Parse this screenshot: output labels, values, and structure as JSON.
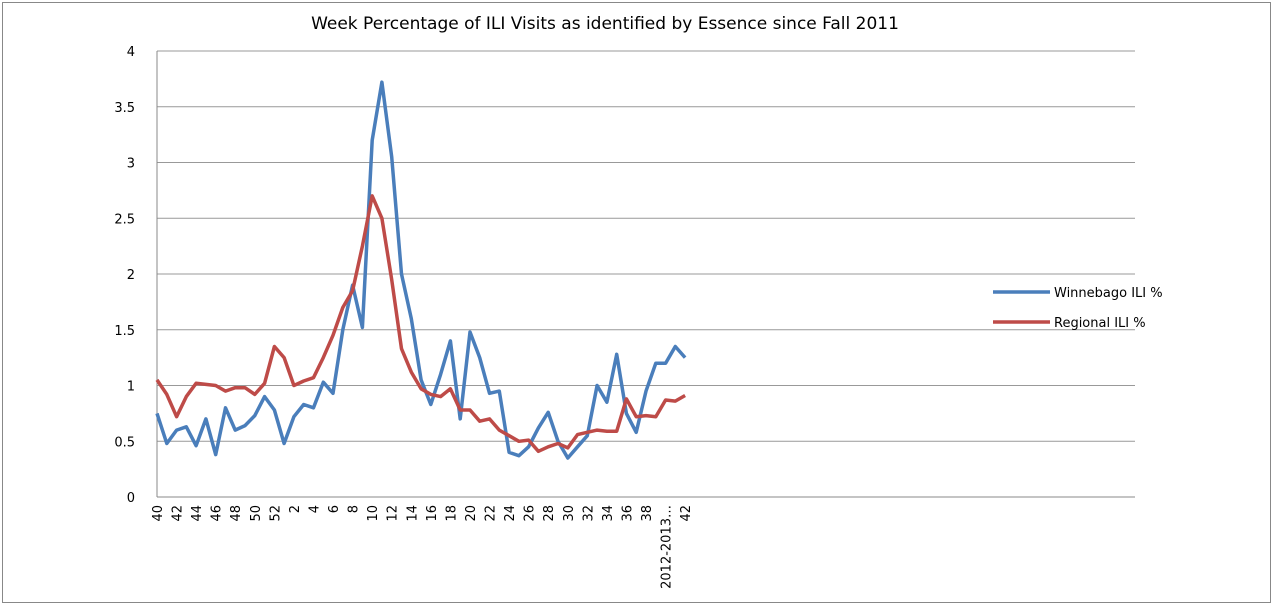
{
  "chart_data": {
    "type": "line",
    "title": "Week Percentage of ILI Visits as identified by Essence since Fall 2011",
    "categories": [
      "40",
      null,
      "42",
      null,
      "44",
      null,
      "46",
      null,
      "48",
      null,
      "50",
      null,
      "52",
      null,
      "2",
      null,
      "4",
      null,
      "6",
      null,
      "8",
      null,
      "10",
      null,
      "12",
      null,
      "14",
      null,
      "16",
      null,
      "18",
      null,
      "20",
      null,
      "22",
      null,
      "24",
      null,
      "26",
      null,
      "28",
      null,
      "30",
      null,
      "32",
      null,
      "34",
      null,
      "36",
      null,
      "38",
      null,
      "2012-2013…",
      null,
      "42",
      null,
      null,
      null,
      null,
      null,
      null,
      null,
      null,
      null,
      null,
      null,
      null,
      null,
      null,
      null,
      null,
      null,
      null,
      null,
      null,
      null,
      null,
      null,
      null,
      null,
      null,
      null,
      null,
      null,
      null,
      null,
      null,
      null,
      null,
      null,
      null,
      null,
      null,
      null,
      null,
      null,
      null,
      null,
      null,
      null
    ],
    "series": [
      {
        "name": "Winnebago ILI %",
        "color": "#4a7ebb",
        "values": [
          0.75,
          0.48,
          0.6,
          0.63,
          0.46,
          0.7,
          0.38,
          0.8,
          0.6,
          0.64,
          0.73,
          0.9,
          0.78,
          0.48,
          0.72,
          0.83,
          0.8,
          1.03,
          0.93,
          1.5,
          1.9,
          1.52,
          3.2,
          3.72,
          3.05,
          2.0,
          1.6,
          1.05,
          0.83,
          1.1,
          1.4,
          0.7,
          1.48,
          1.25,
          0.93,
          0.95,
          0.4,
          0.37,
          0.45,
          0.62,
          0.76,
          0.5,
          0.35,
          0.45,
          0.55,
          1.0,
          0.85,
          1.28,
          0.75,
          0.58,
          0.95,
          1.2,
          1.2,
          1.35,
          1.25,
          null,
          null,
          null,
          null,
          null,
          null,
          null,
          null,
          null,
          null,
          null,
          null,
          null,
          null,
          null,
          null,
          null,
          null,
          null,
          null,
          null,
          null,
          null,
          null,
          null,
          null,
          null,
          null,
          null,
          null,
          null,
          null,
          null,
          null,
          null,
          null,
          null,
          null,
          null,
          null,
          null,
          null,
          null,
          null,
          null
        ]
      },
      {
        "name": "Regional ILI %",
        "color": "#be4b48",
        "values": [
          1.05,
          0.92,
          0.72,
          0.9,
          1.02,
          1.01,
          1.0,
          0.95,
          0.98,
          0.98,
          0.92,
          1.02,
          1.35,
          1.25,
          1.0,
          1.04,
          1.07,
          1.25,
          1.45,
          1.7,
          1.85,
          2.25,
          2.7,
          2.5,
          1.95,
          1.33,
          1.12,
          0.97,
          0.92,
          0.9,
          0.97,
          0.78,
          0.78,
          0.68,
          0.7,
          0.6,
          0.55,
          0.5,
          0.51,
          0.41,
          0.45,
          0.48,
          0.44,
          0.56,
          0.58,
          0.6,
          0.59,
          0.59,
          0.88,
          0.72,
          0.73,
          0.72,
          0.87,
          0.86,
          0.91,
          null,
          null,
          null,
          null,
          null,
          null,
          null,
          null,
          null,
          null,
          null,
          null,
          null,
          null,
          null,
          null,
          null,
          null,
          null,
          null,
          null,
          null,
          null,
          null,
          null,
          null,
          null,
          null,
          null,
          null,
          null,
          null,
          null,
          null,
          null,
          null,
          null,
          null,
          null,
          null,
          null,
          null,
          null,
          null,
          null
        ]
      }
    ],
    "ylim": [
      0,
      4
    ],
    "yticks": [
      0,
      0.5,
      1,
      1.5,
      2,
      2.5,
      3,
      3.5,
      4
    ],
    "grid": true,
    "legend": "right"
  }
}
